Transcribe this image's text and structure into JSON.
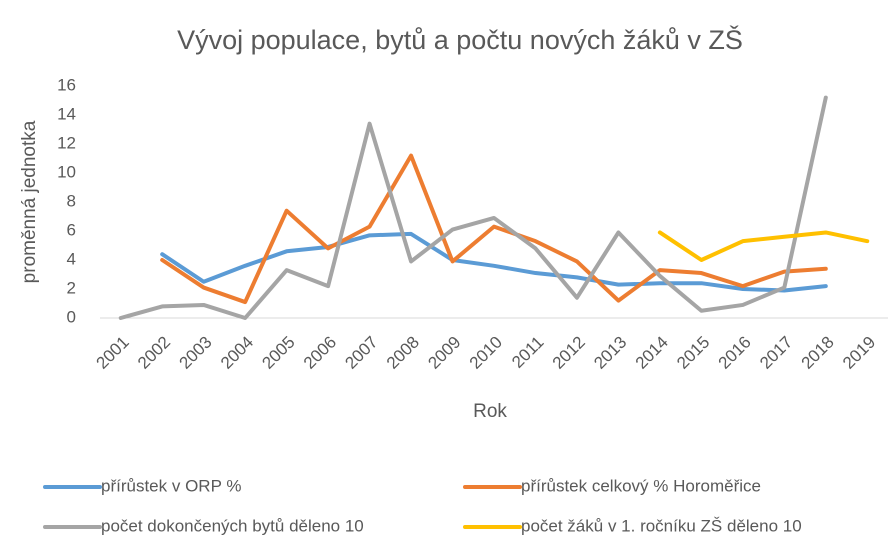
{
  "chart_data": {
    "type": "line",
    "title": "Vývoj populace, bytů a počtu nových žáků v ZŠ",
    "x_label": "Rok",
    "y_label": "proměnná jednotka",
    "categories": [
      "2001",
      "2002",
      "2003",
      "2004",
      "2005",
      "2006",
      "2007",
      "2008",
      "2009",
      "2010",
      "2011",
      "2012",
      "2013",
      "2014",
      "2015",
      "2016",
      "2017",
      "2018",
      "2019"
    ],
    "series": [
      {
        "name": "přírůstek v ORP %",
        "color": "#5b9bd5",
        "values": [
          null,
          4.4,
          2.5,
          3.6,
          4.6,
          4.9,
          5.7,
          5.8,
          4.0,
          3.6,
          3.1,
          2.8,
          2.3,
          2.4,
          2.4,
          2.0,
          1.9,
          2.2,
          null
        ]
      },
      {
        "name": "přírůstek celkový % Horoměřice",
        "color": "#ed7d31",
        "values": [
          null,
          4.0,
          2.1,
          1.1,
          7.4,
          4.8,
          6.3,
          11.2,
          3.9,
          6.3,
          5.3,
          3.9,
          1.2,
          3.3,
          3.1,
          2.2,
          3.2,
          3.4,
          null
        ]
      },
      {
        "name": "počet dokončených bytů děleno 10",
        "color": "#a5a5a5",
        "values": [
          0,
          0.8,
          0.9,
          0,
          3.3,
          2.2,
          13.4,
          3.9,
          6.1,
          6.9,
          4.8,
          1.4,
          5.9,
          2.9,
          0.5,
          0.9,
          2.1,
          15.2,
          null
        ]
      },
      {
        "name": "počet žáků v 1. ročníku ZŠ děleno 10",
        "color": "#ffc000",
        "values": [
          null,
          null,
          null,
          null,
          null,
          null,
          null,
          null,
          null,
          null,
          null,
          null,
          null,
          5.9,
          4.0,
          5.3,
          5.6,
          5.9,
          5.3
        ]
      }
    ],
    "ylim": [
      0,
      16
    ],
    "yticks": [
      0,
      2,
      4,
      6,
      8,
      10,
      12,
      14,
      16
    ],
    "grid": false,
    "legend": "bottom"
  }
}
